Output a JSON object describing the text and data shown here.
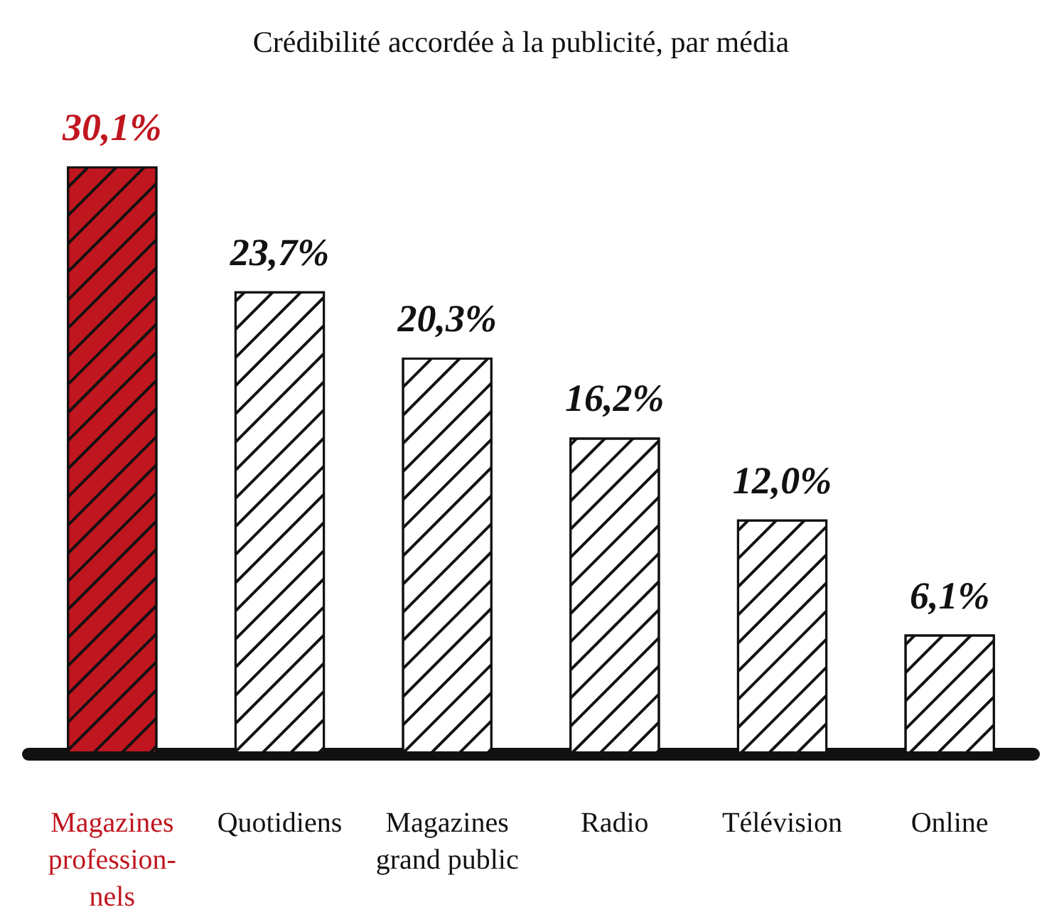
{
  "chart_data": {
    "type": "bar",
    "title": "Crédibilité accordée à la publicité, par média",
    "categories": [
      "Magazines\nprofession-\nnels",
      "Quotidiens",
      "Magazines\ngrand public",
      "Radio",
      "Télévision",
      "Online"
    ],
    "values": [
      30.1,
      23.7,
      20.3,
      16.2,
      12.0,
      6.1
    ],
    "value_labels": [
      "30,1%",
      "23,7%",
      "20,3%",
      "16,2%",
      "12,0%",
      "6,1%"
    ],
    "colors": [
      "#c0161f",
      "#ffffff",
      "#ffffff",
      "#ffffff",
      "#ffffff",
      "#ffffff"
    ]
  }
}
